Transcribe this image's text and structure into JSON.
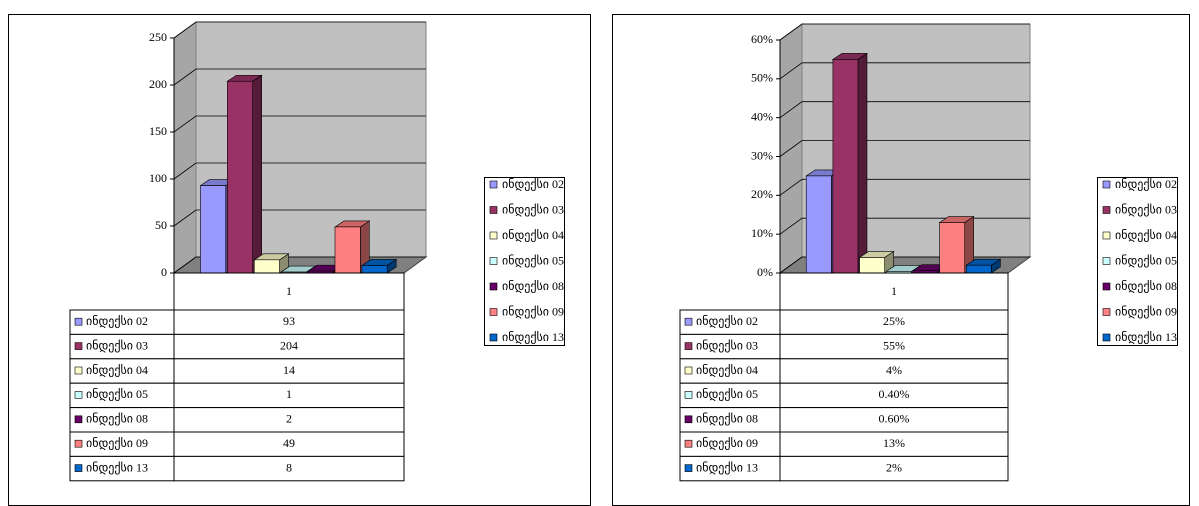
{
  "chart_data": [
    {
      "type": "bar",
      "categories": [
        "1"
      ],
      "ylim": [
        0,
        250
      ],
      "yticks": [
        0,
        50,
        100,
        150,
        200,
        250
      ],
      "grid": true,
      "legend": "right",
      "series": [
        {
          "name": "ინდექსი  02",
          "color": "#9999ff",
          "values": [
            93
          ]
        },
        {
          "name": "ინდექსი  03",
          "color": "#993366",
          "values": [
            204
          ]
        },
        {
          "name": "ინდექსი  04",
          "color": "#ffffcc",
          "values": [
            14
          ]
        },
        {
          "name": "ინდექსი  05",
          "color": "#ccffff",
          "values": [
            1
          ]
        },
        {
          "name": "ინდექსი  08",
          "color": "#660066",
          "values": [
            2
          ]
        },
        {
          "name": "ინდექსი  09",
          "color": "#ff8080",
          "values": [
            49
          ]
        },
        {
          "name": "ინდექსი  13",
          "color": "#0066cc",
          "values": [
            8
          ]
        }
      ]
    },
    {
      "type": "bar",
      "categories": [
        "1"
      ],
      "ylim": [
        0,
        60
      ],
      "yticks": [
        {
          "value": 0,
          "label": "0%"
        },
        {
          "value": 10,
          "label": "10%"
        },
        {
          "value": 20,
          "label": "20%"
        },
        {
          "value": 30,
          "label": "30%"
        },
        {
          "value": 40,
          "label": "40%"
        },
        {
          "value": 50,
          "label": "50%"
        },
        {
          "value": 60,
          "label": "60%"
        }
      ],
      "grid": true,
      "legend": "right",
      "series": [
        {
          "name": "ინდექსი  02",
          "color": "#9999ff",
          "values": [
            25
          ],
          "value_labels": [
            "25%"
          ]
        },
        {
          "name": "ინდექსი  03",
          "color": "#993366",
          "values": [
            55
          ],
          "value_labels": [
            "55%"
          ]
        },
        {
          "name": "ინდექსი  04",
          "color": "#ffffcc",
          "values": [
            4
          ],
          "value_labels": [
            "4%"
          ]
        },
        {
          "name": "ინდექსი  05",
          "color": "#ccffff",
          "values": [
            0.4
          ],
          "value_labels": [
            "0.40%"
          ]
        },
        {
          "name": "ინდექსი  08",
          "color": "#660066",
          "values": [
            0.6
          ],
          "value_labels": [
            "0.60%"
          ]
        },
        {
          "name": "ინდექსი  09",
          "color": "#ff8080",
          "values": [
            13
          ],
          "value_labels": [
            "13%"
          ]
        },
        {
          "name": "ინდექსი  13",
          "color": "#0066cc",
          "values": [
            2
          ],
          "value_labels": [
            "2%"
          ]
        }
      ]
    }
  ]
}
